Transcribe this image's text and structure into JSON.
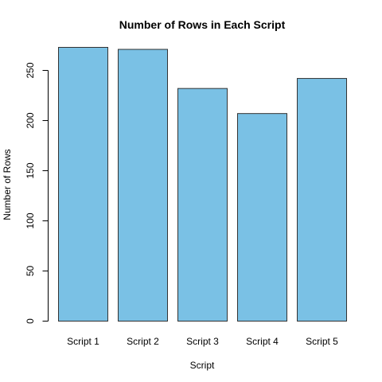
{
  "chart_data": {
    "type": "bar",
    "title": "Number of Rows in Each Script",
    "xlabel": "Script",
    "ylabel": "Number of Rows",
    "categories": [
      "Script 1",
      "Script 2",
      "Script 3",
      "Script 4",
      "Script 5"
    ],
    "values": [
      273,
      271,
      232,
      207,
      242
    ],
    "ylim": [
      0,
      273
    ],
    "yticks": [
      0,
      50,
      100,
      150,
      200,
      250
    ],
    "grid": false,
    "bar_color": "#7AC1E5",
    "bar_edge_color": "#333333"
  }
}
